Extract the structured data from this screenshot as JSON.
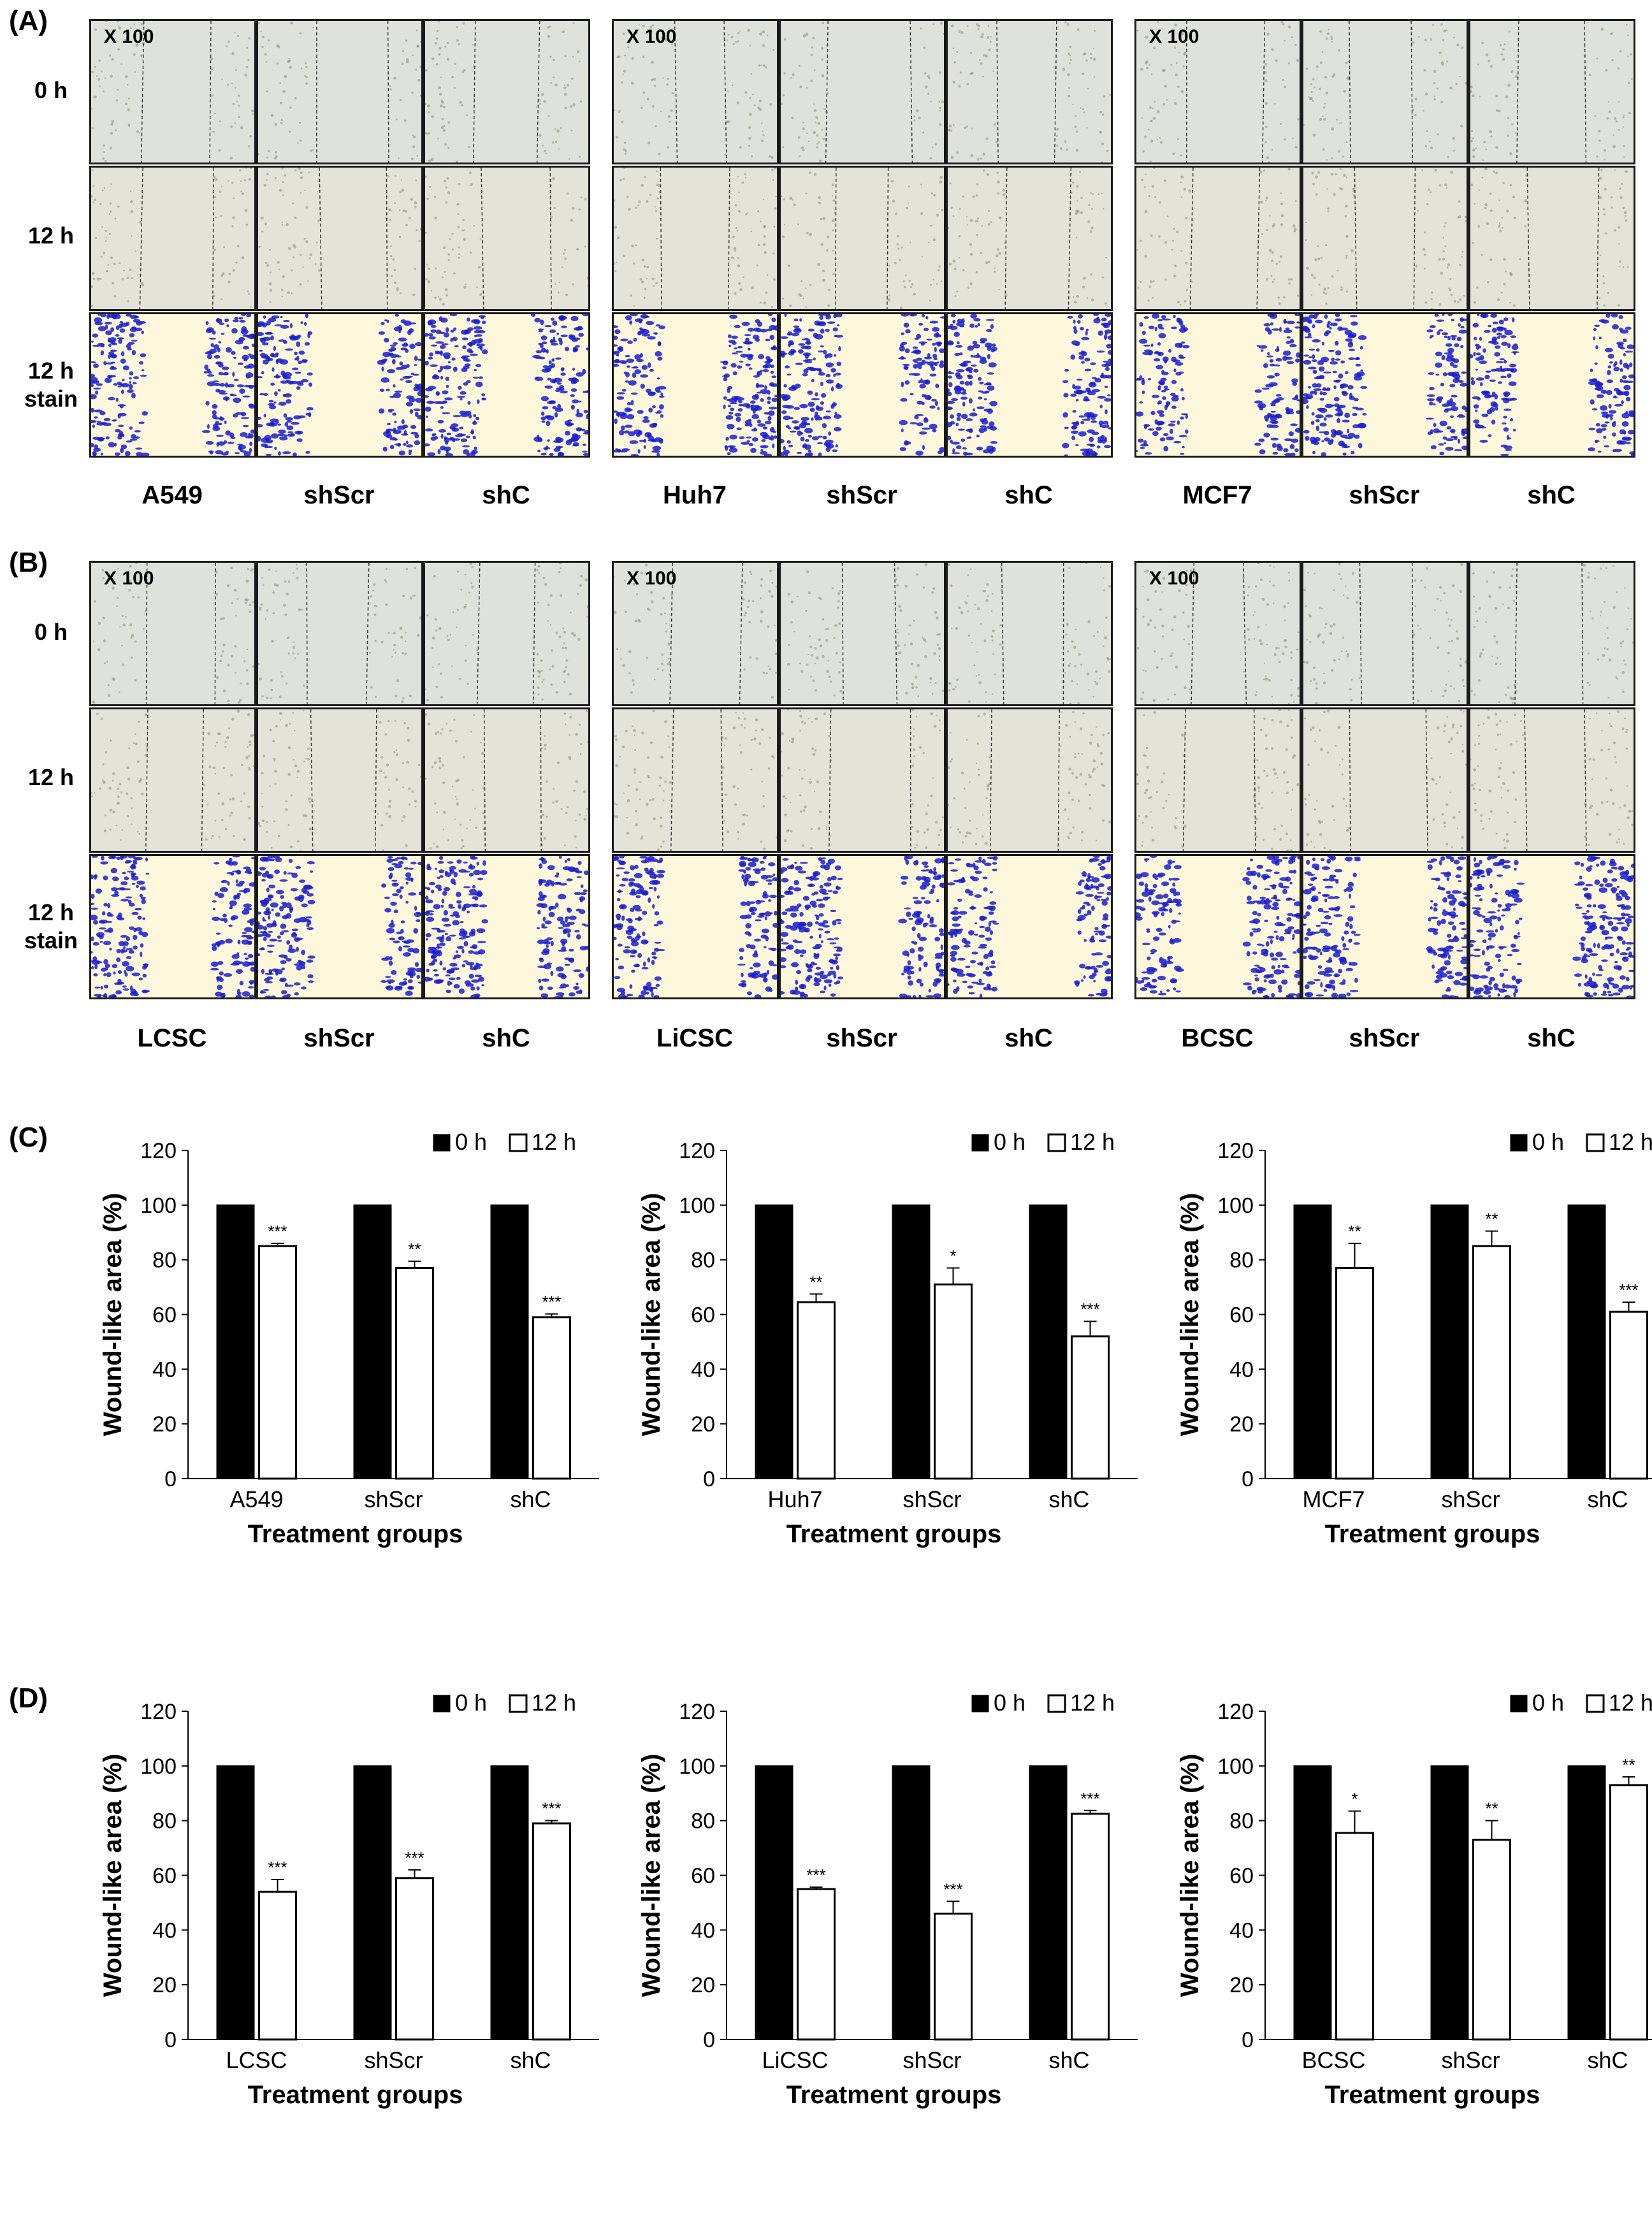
{
  "figure": {
    "panel_labels": {
      "A": "(A)",
      "B": "(B)",
      "C": "(C)",
      "D": "(D)"
    },
    "row_labels": {
      "r0": "0 h",
      "r1": "12 h",
      "r2a": "12 h",
      "r2b": "stain"
    },
    "magnification": "X 100",
    "micrograph_groups_A": [
      {
        "labels": [
          "A549",
          "shScr",
          "shC"
        ]
      },
      {
        "labels": [
          "Huh7",
          "shScr",
          "shC"
        ]
      },
      {
        "labels": [
          "MCF7",
          "shScr",
          "shC"
        ]
      }
    ],
    "micrograph_groups_B": [
      {
        "labels": [
          "LCSC",
          "shScr",
          "shC"
        ]
      },
      {
        "labels": [
          "LiCSC",
          "shScr",
          "shC"
        ]
      },
      {
        "labels": [
          "BCSC",
          "shScr",
          "shC"
        ]
      }
    ]
  },
  "chart_data": [
    {
      "type": "bar",
      "panel": "C",
      "categories": [
        "A549",
        "shScr",
        "shC"
      ],
      "series": [
        {
          "name": "0 h",
          "values": [
            100,
            100,
            100
          ],
          "color": "#000000"
        },
        {
          "name": "12 h",
          "values": [
            85,
            77,
            59
          ],
          "errors": [
            1,
            2.5,
            1.2
          ],
          "significance": [
            "***",
            "**",
            "***"
          ],
          "color": "#ffffff"
        }
      ],
      "xlabel": "Treatment groups",
      "ylabel": "Wound-like area (%)",
      "ylim": [
        0,
        120
      ],
      "yticks": [
        0,
        20,
        40,
        60,
        80,
        100,
        120
      ],
      "legend": "top-right"
    },
    {
      "type": "bar",
      "panel": "C",
      "categories": [
        "Huh7",
        "shScr",
        "shC"
      ],
      "series": [
        {
          "name": "0 h",
          "values": [
            100,
            100,
            100
          ],
          "color": "#000000"
        },
        {
          "name": "12 h",
          "values": [
            64.5,
            71,
            52
          ],
          "errors": [
            3,
            6,
            5.5
          ],
          "significance": [
            "**",
            "*",
            "***"
          ],
          "color": "#ffffff"
        }
      ],
      "xlabel": "Treatment groups",
      "ylabel": "Wound-like area (%)",
      "ylim": [
        0,
        120
      ],
      "yticks": [
        0,
        20,
        40,
        60,
        80,
        100,
        120
      ],
      "legend": "top-right"
    },
    {
      "type": "bar",
      "panel": "C",
      "categories": [
        "MCF7",
        "shScr",
        "shC"
      ],
      "series": [
        {
          "name": "0 h",
          "values": [
            100,
            100,
            100
          ],
          "color": "#000000"
        },
        {
          "name": "12 h",
          "values": [
            77,
            85,
            61
          ],
          "errors": [
            9,
            5.5,
            3.5
          ],
          "significance": [
            "**",
            "**",
            "***"
          ],
          "color": "#ffffff"
        }
      ],
      "xlabel": "Treatment groups",
      "ylabel": "Wound-like area (%)",
      "ylim": [
        0,
        120
      ],
      "yticks": [
        0,
        20,
        40,
        60,
        80,
        100,
        120
      ],
      "legend": "top-right"
    },
    {
      "type": "bar",
      "panel": "D",
      "categories": [
        "LCSC",
        "shScr",
        "shC"
      ],
      "series": [
        {
          "name": "0 h",
          "values": [
            100,
            100,
            100
          ],
          "color": "#000000"
        },
        {
          "name": "12 h",
          "values": [
            54,
            59,
            79
          ],
          "errors": [
            4.5,
            3,
            1
          ],
          "significance": [
            "***",
            "***",
            "***"
          ],
          "color": "#ffffff"
        }
      ],
      "xlabel": "Treatment groups",
      "ylabel": "Wound-like area (%)",
      "ylim": [
        0,
        120
      ],
      "yticks": [
        0,
        20,
        40,
        60,
        80,
        100,
        120
      ],
      "legend": "top-right"
    },
    {
      "type": "bar",
      "panel": "D",
      "categories": [
        "LiCSC",
        "shScr",
        "shC"
      ],
      "series": [
        {
          "name": "0 h",
          "values": [
            100,
            100,
            100
          ],
          "color": "#000000"
        },
        {
          "name": "12 h",
          "values": [
            55,
            46,
            82.5
          ],
          "errors": [
            0.7,
            4.5,
            1.2
          ],
          "significance": [
            "***",
            "***",
            "***"
          ],
          "color": "#ffffff"
        }
      ],
      "xlabel": "Treatment groups",
      "ylabel": "Wound-like area (%)",
      "ylim": [
        0,
        120
      ],
      "yticks": [
        0,
        20,
        40,
        60,
        80,
        100,
        120
      ],
      "legend": "top-right"
    },
    {
      "type": "bar",
      "panel": "D",
      "categories": [
        "BCSC",
        "shScr",
        "shC"
      ],
      "series": [
        {
          "name": "0 h",
          "values": [
            100,
            100,
            100
          ],
          "color": "#000000"
        },
        {
          "name": "12 h",
          "values": [
            75.5,
            73,
            93
          ],
          "errors": [
            8,
            7,
            3
          ],
          "significance": [
            "*",
            "**",
            "**"
          ],
          "color": "#ffffff"
        }
      ],
      "xlabel": "Treatment groups",
      "ylabel": "Wound-like area (%)",
      "ylim": [
        0,
        120
      ],
      "yticks": [
        0,
        20,
        40,
        60,
        80,
        100,
        120
      ],
      "legend": "top-right"
    }
  ]
}
